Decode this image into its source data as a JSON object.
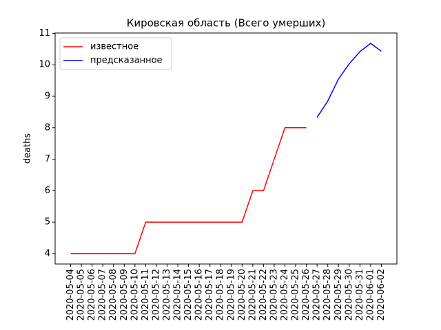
{
  "chart_data": {
    "type": "line",
    "title": "Кировская область (Всего умерших)",
    "y_label": "deaths",
    "categories": [
      "2020-05-04",
      "2020-05-05",
      "2020-05-06",
      "2020-05-07",
      "2020-05-08",
      "2020-05-09",
      "2020-05-10",
      "2020-05-11",
      "2020-05-12",
      "2020-05-13",
      "2020-05-14",
      "2020-05-15",
      "2020-05-16",
      "2020-05-17",
      "2020-05-18",
      "2020-05-19",
      "2020-05-20",
      "2020-05-21",
      "2020-05-22",
      "2020-05-23",
      "2020-05-24",
      "2020-05-25",
      "2020-05-26",
      "2020-05-27",
      "2020-05-28",
      "2020-05-29",
      "2020-05-30",
      "2020-05-31",
      "2020-06-01",
      "2020-06-02"
    ],
    "series": [
      {
        "name": "известное",
        "color": "#ff0000",
        "values": [
          4,
          4,
          4,
          4,
          4,
          4,
          4,
          5,
          5,
          5,
          5,
          5,
          5,
          5,
          5,
          5,
          5,
          6,
          6,
          7,
          8,
          8,
          8,
          null,
          null,
          null,
          null,
          null,
          null,
          null
        ]
      },
      {
        "name": "предсказанное",
        "color": "#0000ff",
        "values": [
          null,
          null,
          null,
          null,
          null,
          null,
          null,
          null,
          null,
          null,
          null,
          null,
          null,
          null,
          null,
          null,
          null,
          null,
          null,
          null,
          null,
          null,
          null,
          8.33,
          8.85,
          9.55,
          10.03,
          10.42,
          10.68,
          10.43
        ]
      }
    ],
    "ylim": [
      3.67,
      11.01
    ],
    "yticks": [
      4,
      5,
      6,
      7,
      8,
      9,
      10,
      11
    ],
    "legend": "upper left",
    "grid": false
  }
}
